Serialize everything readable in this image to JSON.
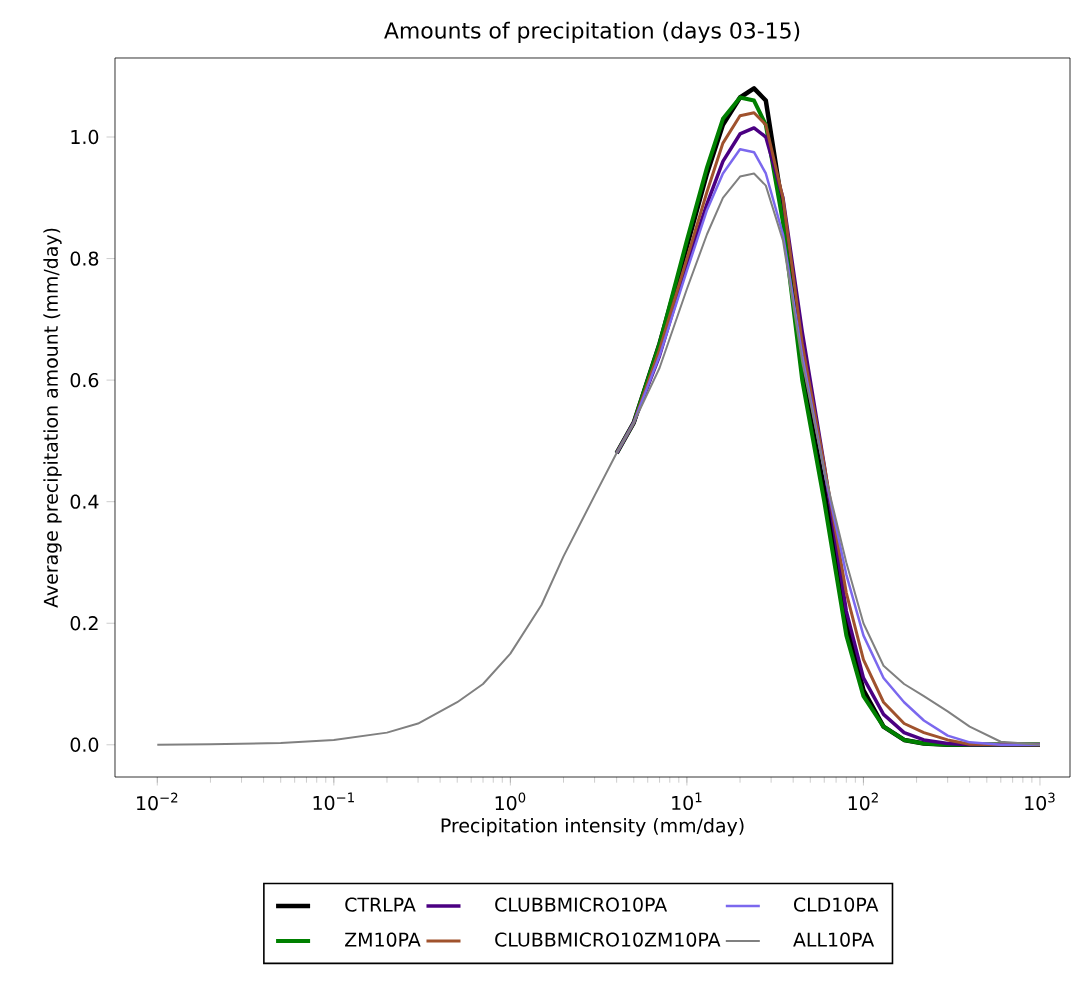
{
  "chart_data": {
    "type": "line",
    "title": "Amounts of precipitation (days 03-15)",
    "xlabel": "Precipitation intensity (mm/day)",
    "ylabel": "Average precipitation amount (mm/day)",
    "log": "x",
    "legend": "bottom",
    "xlim": [
      0.00576,
      1480
    ],
    "ylim": [
      -0.053,
      1.13
    ],
    "xticks": [
      {
        "value": 0.01,
        "label": "10$^{−2}$"
      },
      {
        "value": 0.1,
        "label": "10$^{−1}$"
      },
      {
        "value": 1,
        "label": "10$^{0}$"
      },
      {
        "value": 10,
        "label": "10$^{1}$"
      },
      {
        "value": 100,
        "label": "10$^{2}$"
      },
      {
        "value": 1000,
        "label": "10$^{3}$"
      }
    ],
    "yticks": [
      {
        "value": 0,
        "label": "0.0"
      },
      {
        "value": 0.2,
        "label": "0.2"
      },
      {
        "value": 0.4,
        "label": "0.4"
      },
      {
        "value": 0.6,
        "label": "0.6"
      },
      {
        "value": 0.8,
        "label": "0.8"
      },
      {
        "value": 1.0,
        "label": "1.0"
      }
    ],
    "x": [
      0.01,
      0.02,
      0.05,
      0.1,
      0.2,
      0.3,
      0.5,
      0.7,
      1,
      1.5,
      2,
      3,
      4,
      5,
      7,
      10,
      13,
      16,
      20,
      24,
      28,
      35,
      45,
      60,
      80,
      100,
      130,
      170,
      220,
      300,
      400,
      600,
      1000
    ],
    "series": [
      {
        "name": "CTRLPA",
        "color": "#000000",
        "values": [
          null,
          null,
          null,
          null,
          null,
          null,
          null,
          null,
          null,
          null,
          null,
          null,
          0.48,
          0.53,
          0.66,
          0.82,
          0.94,
          1.02,
          1.065,
          1.08,
          1.06,
          0.88,
          0.62,
          0.42,
          0.2,
          0.09,
          0.03,
          0.008,
          0.002,
          0,
          0,
          0,
          0
        ]
      },
      {
        "name": "ZM10PA",
        "color": "#008000",
        "values": [
          null,
          null,
          null,
          null,
          null,
          null,
          null,
          null,
          null,
          null,
          null,
          null,
          0.48,
          0.53,
          0.66,
          0.83,
          0.95,
          1.03,
          1.065,
          1.06,
          1.02,
          0.86,
          0.6,
          0.4,
          0.18,
          0.08,
          0.03,
          0.008,
          0.002,
          0,
          0,
          0,
          0
        ]
      },
      {
        "name": "CLUBBMICRO10PA",
        "color": "#4b0082",
        "values": [
          null,
          null,
          null,
          null,
          null,
          null,
          null,
          null,
          null,
          null,
          null,
          null,
          0.48,
          0.53,
          0.64,
          0.79,
          0.89,
          0.96,
          1.005,
          1.015,
          1.0,
          0.9,
          0.68,
          0.46,
          0.22,
          0.11,
          0.05,
          0.02,
          0.008,
          0.002,
          0,
          0,
          0
        ]
      },
      {
        "name": "CLUBBMICRO10ZM10PA",
        "color": "#a0522d",
        "values": [
          null,
          null,
          null,
          null,
          null,
          null,
          null,
          null,
          null,
          null,
          null,
          null,
          0.48,
          0.53,
          0.65,
          0.8,
          0.91,
          0.99,
          1.035,
          1.04,
          1.02,
          0.9,
          0.66,
          0.46,
          0.25,
          0.14,
          0.07,
          0.035,
          0.02,
          0.008,
          0.001,
          0,
          0
        ]
      },
      {
        "name": "CLD10PA",
        "color": "#7b68ee",
        "values": [
          null,
          null,
          null,
          null,
          null,
          null,
          null,
          null,
          null,
          null,
          null,
          null,
          0.48,
          0.53,
          0.64,
          0.78,
          0.88,
          0.94,
          0.98,
          0.975,
          0.94,
          0.84,
          0.64,
          0.45,
          0.28,
          0.18,
          0.11,
          0.07,
          0.04,
          0.015,
          0.004,
          0,
          0
        ]
      },
      {
        "name": "ALL10PA",
        "color": "#808080",
        "values": [
          0,
          0.001,
          0.003,
          0.008,
          0.02,
          0.035,
          0.07,
          0.1,
          0.15,
          0.23,
          0.31,
          0.41,
          0.48,
          0.53,
          0.62,
          0.75,
          0.84,
          0.9,
          0.935,
          0.94,
          0.92,
          0.83,
          0.63,
          0.45,
          0.3,
          0.2,
          0.13,
          0.1,
          0.08,
          0.055,
          0.03,
          0.005,
          0
        ]
      }
    ]
  }
}
